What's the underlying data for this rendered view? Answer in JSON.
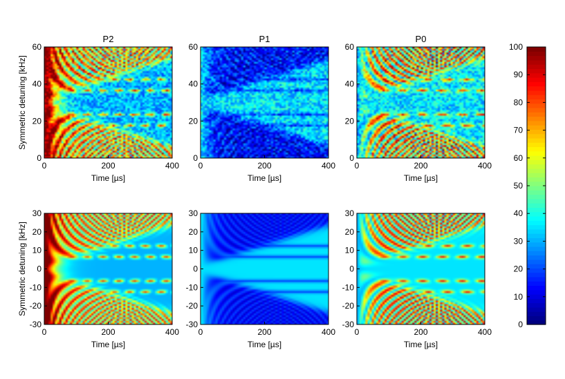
{
  "chart_data": [
    {
      "type": "heatmap",
      "title": "P2",
      "xlabel": "Time [µs]",
      "ylabel": "Symmetric detuning [kHz]",
      "xlim": [
        0,
        400
      ],
      "ylim": [
        0,
        60
      ],
      "xticks": [
        "0",
        "200",
        "400"
      ],
      "yticks": [
        "0",
        "20",
        "40",
        "60"
      ],
      "kind": "experiment",
      "pattern": "P2"
    },
    {
      "type": "heatmap",
      "title": "P1",
      "xlabel": "Time [µs]",
      "ylabel": "",
      "xlim": [
        0,
        400
      ],
      "ylim": [
        0,
        60
      ],
      "xticks": [
        "0",
        "200",
        "400"
      ],
      "yticks": [
        "0",
        "20",
        "40",
        "60"
      ],
      "kind": "experiment",
      "pattern": "P1"
    },
    {
      "type": "heatmap",
      "title": "P0",
      "xlabel": "Time [µs]",
      "ylabel": "",
      "xlim": [
        0,
        400
      ],
      "ylim": [
        0,
        60
      ],
      "xticks": [
        "0",
        "200",
        "400"
      ],
      "yticks": [
        "0",
        "20",
        "40",
        "60"
      ],
      "kind": "experiment",
      "pattern": "P0"
    },
    {
      "type": "heatmap",
      "title": "",
      "xlabel": "Time [µs]",
      "ylabel": "Symmetric detuning [kHz]",
      "xlim": [
        0,
        400
      ],
      "ylim": [
        -30,
        30
      ],
      "xticks": [
        "0",
        "200",
        "400"
      ],
      "yticks": [
        "-30",
        "-20",
        "-10",
        "0",
        "10",
        "20",
        "30"
      ],
      "kind": "theory",
      "pattern": "P2"
    },
    {
      "type": "heatmap",
      "title": "",
      "xlabel": "Time [µs]",
      "ylabel": "",
      "xlim": [
        0,
        400
      ],
      "ylim": [
        -30,
        30
      ],
      "xticks": [
        "0",
        "200",
        "400"
      ],
      "yticks": [
        "-30",
        "-20",
        "-10",
        "0",
        "10",
        "20",
        "30"
      ],
      "kind": "theory",
      "pattern": "P1"
    },
    {
      "type": "heatmap",
      "title": "",
      "xlabel": "Time [µs]",
      "ylabel": "",
      "xlim": [
        0,
        400
      ],
      "ylim": [
        -30,
        30
      ],
      "xticks": [
        "0",
        "200",
        "400"
      ],
      "yticks": [
        "-30",
        "-20",
        "-10",
        "0",
        "10",
        "20",
        "30"
      ],
      "kind": "theory",
      "pattern": "P0"
    }
  ],
  "colorbar": {
    "range": [
      0,
      100
    ],
    "ticks": [
      "0",
      "10",
      "20",
      "30",
      "40",
      "50",
      "60",
      "70",
      "80",
      "90",
      "100"
    ],
    "colormap": "jet"
  }
}
